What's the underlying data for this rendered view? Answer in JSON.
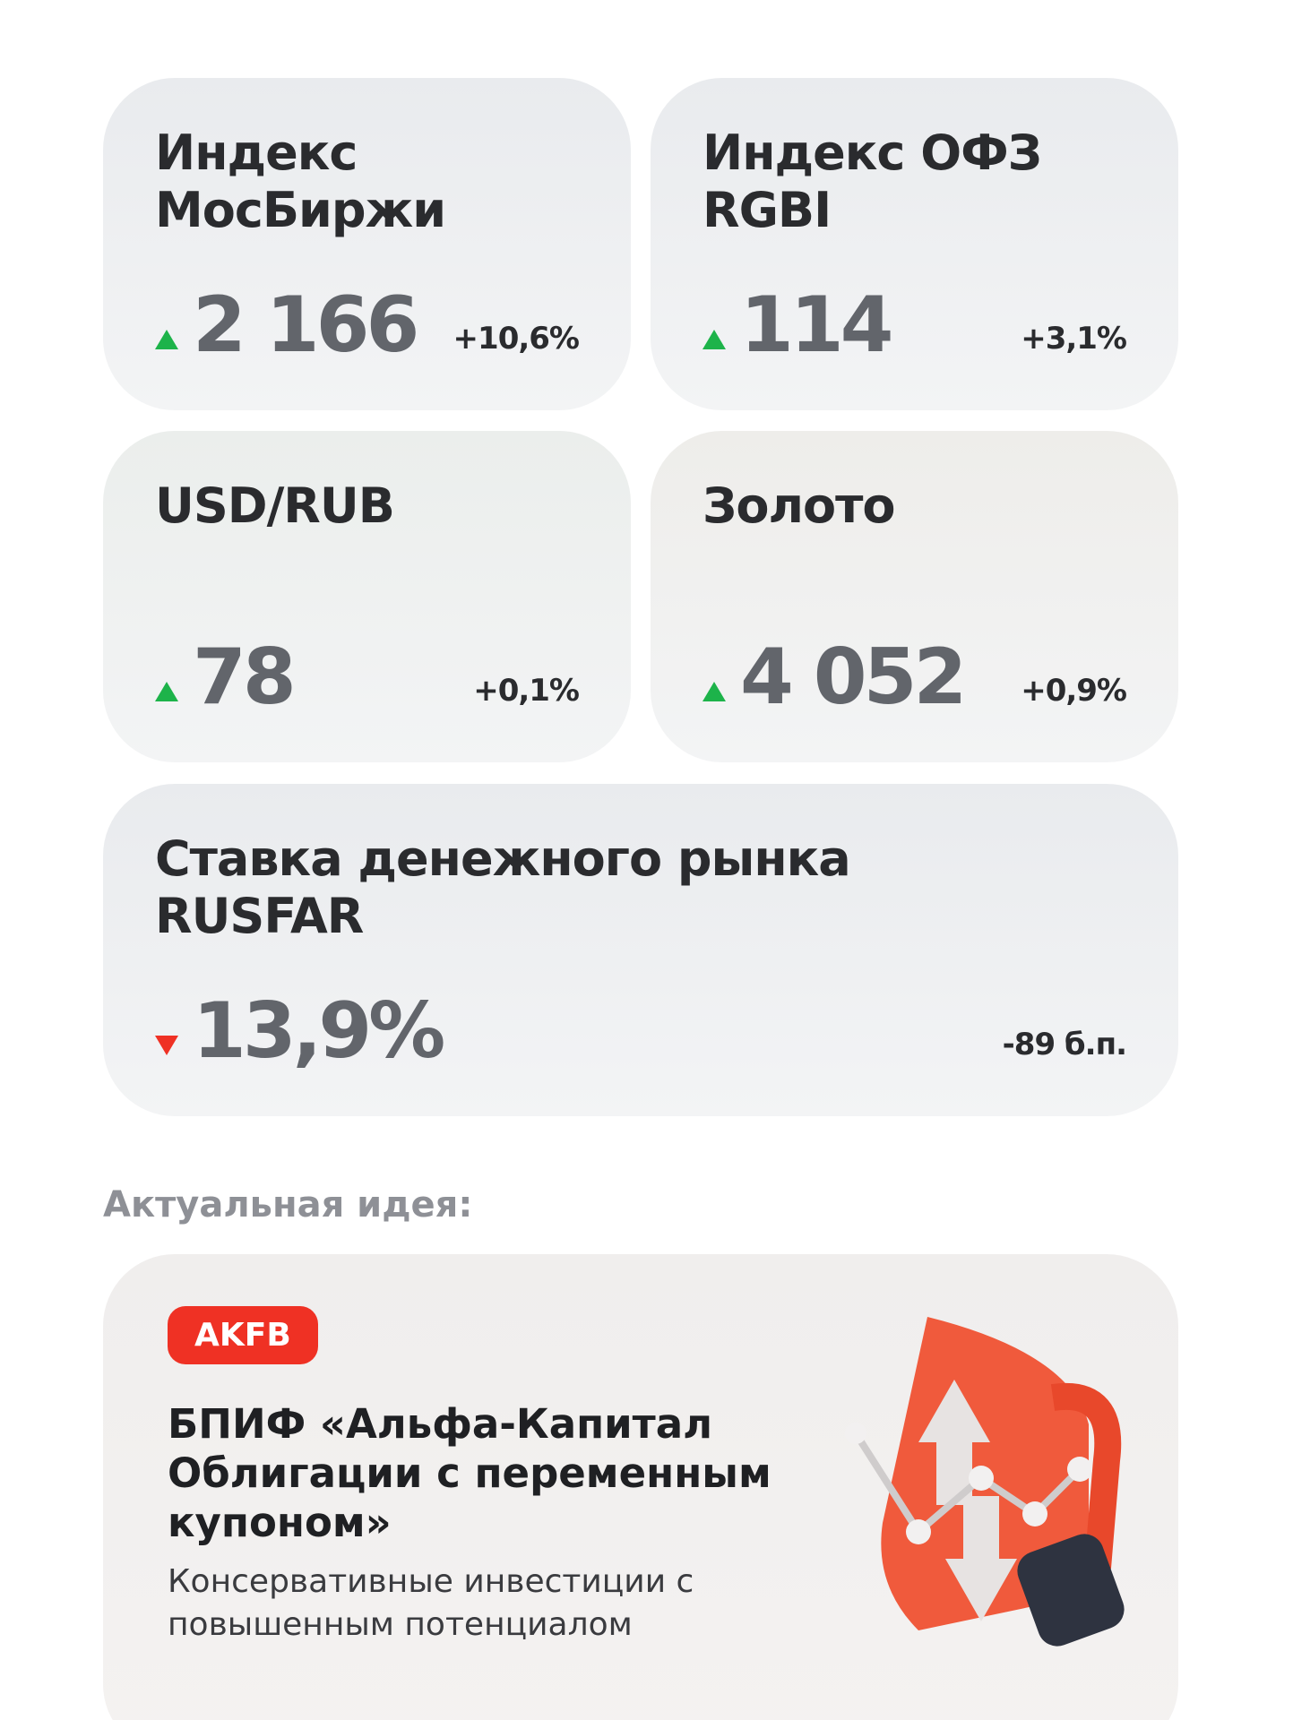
{
  "cards": [
    {
      "title": "Индекс МосБиржи",
      "value": "2 166",
      "change": "+10,6%",
      "trend": "up",
      "tint": "#e9ebee"
    },
    {
      "title": "Индекс ОФЗ RGBI",
      "value": "114",
      "change": "+3,1%",
      "trend": "up",
      "tint": "#e9ebee"
    },
    {
      "title": "USD/RUB",
      "value": "78",
      "change": "+0,1%",
      "trend": "up",
      "tint": "#ebeeec"
    },
    {
      "title": "Золото",
      "value": "4 052",
      "change": "+0,9%",
      "trend": "up",
      "tint": "#eeedea"
    },
    {
      "title": "Ставка денежного рынка RUSFAR",
      "value": "13,9%",
      "change": "-89 б.п.",
      "trend": "down",
      "tint": "#e9ebee"
    }
  ],
  "idea": {
    "label": "Актуальная идея:",
    "ticker": "AKFB",
    "title": "БПИФ «Альфа-Капитал Облигации с переменным купоном»",
    "subtitle": "Консервативные инвестиции с повышенным потенциалом"
  }
}
